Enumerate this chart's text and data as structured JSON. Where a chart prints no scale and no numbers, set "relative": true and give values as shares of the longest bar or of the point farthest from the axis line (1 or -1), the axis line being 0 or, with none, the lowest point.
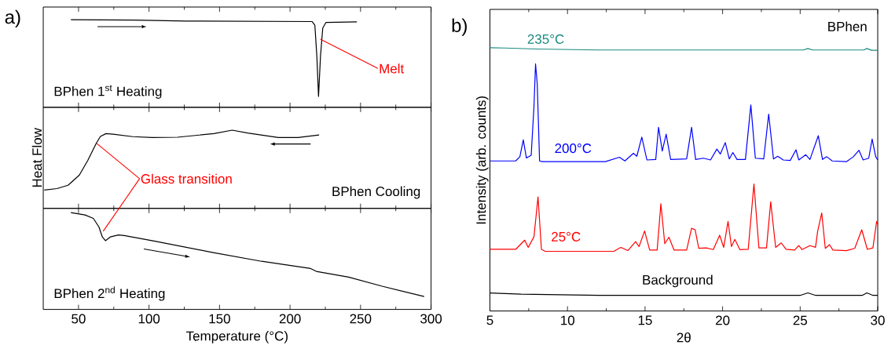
{
  "chart_data": [
    {
      "type": "line",
      "title": "a)",
      "relative": true,
      "xlim": [
        25,
        300
      ],
      "xticks": [
        50,
        100,
        150,
        200,
        250,
        300
      ],
      "tick_labels": false,
      "marker": "none",
      "annotations": [
        "BPhen 1$^{st}$ Heating",
        {
          "text": "Melt",
          "x": 221.5,
          "y": 0.745
        }
      ],
      "series": [
        {
          "color": "#000000",
          "x": [
            44.6,
            90.4,
            126,
            215.6,
            217.6,
            219,
            220.2,
            221.6,
            223.2,
            225.5,
            247.4
          ],
          "values": [
            1.0,
            0.993,
            0.982,
            0.975,
            0.927,
            0.527,
            0,
            0.527,
            0.891,
            0.964,
            0.971
          ]
        }
      ]
    },
    {
      "type": "line",
      "ylabel": "Heat Flow",
      "relative": true,
      "xlim": [
        25,
        300
      ],
      "xticks": [
        50,
        100,
        150,
        200,
        250,
        300
      ],
      "tick_labels": false,
      "marker": "none",
      "annotations": [
        "BPhen Cooling",
        {
          "text": "Glass transition",
          "x": 62.9,
          "y": 0.778
        }
      ],
      "series": [
        {
          "color": "#000000",
          "x": [
            25.7,
            34.7,
            42.6,
            50.6,
            56.6,
            62.5,
            65.5,
            69.5,
            74.5,
            88.4,
            102.3,
            120.2,
            146,
            159,
            169.9,
            191.7,
            205.7,
            220.6
          ],
          "values": [
            0,
            0.024,
            0.08,
            0.25,
            0.495,
            0.778,
            0.896,
            0.943,
            0.934,
            0.892,
            0.877,
            0.882,
            0.943,
            1.0,
            0.953,
            0.877,
            0.877,
            0.92
          ]
        }
      ]
    },
    {
      "type": "line",
      "xlabel": "Temperature (°C)",
      "relative": true,
      "xlim": [
        25,
        300
      ],
      "xticks": [
        50,
        100,
        150,
        200,
        250,
        300
      ],
      "tick_labels": "x",
      "marker": "none",
      "annotations": [
        "BPhen 2$^{nd}$ Heating"
      ],
      "series": [
        {
          "color": "#000000",
          "x": [
            44.6,
            54.6,
            60.5,
            64.5,
            66.9,
            69.1,
            72.5,
            78.4,
            82.4,
            104.3,
            144,
            179.8,
            214.6,
            218.6,
            241.5,
            265.3,
            295.1
          ],
          "values": [
            1.0,
            0.973,
            0.932,
            0.829,
            0.71,
            0.666,
            0.71,
            0.734,
            0.727,
            0.659,
            0.529,
            0.42,
            0.334,
            0.3,
            0.232,
            0.123,
            0
          ]
        }
      ]
    },
    {
      "type": "line",
      "title": "b)",
      "xlabel": "2θ",
      "ylabel": "Intensity (arb. counts)",
      "relative": true,
      "xlim": [
        5,
        30
      ],
      "xticks": [
        5,
        10,
        15,
        20,
        25,
        30
      ],
      "tick_labels": "x",
      "marker": "none",
      "annotations": [
        "BPhen"
      ],
      "series": [
        {
          "name": "235°C",
          "color": "#1a8a80",
          "x": [
            5,
            6,
            8,
            12,
            20,
            25.2,
            25.5,
            25.8,
            29.1,
            29.3,
            29.6,
            30
          ],
          "values": [
            1.0,
            0.999,
            0.995,
            0.991,
            0.991,
            0.991,
            0.997,
            0.991,
            0.991,
            0.997,
            0.99,
            0.99
          ]
        },
        {
          "name": "200°C",
          "color": "#0000ff",
          "x": [
            5,
            6.66,
            6.93,
            7.15,
            7.35,
            7.66,
            7.84,
            7.94,
            8.05,
            8.2,
            8.38,
            12.44,
            13.35,
            13.7,
            14.25,
            14.47,
            14.79,
            15.12,
            15.69,
            15.87,
            16.11,
            16.36,
            16.65,
            17.68,
            18.0,
            18.26,
            18.76,
            19.22,
            19.63,
            19.85,
            20.17,
            20.43,
            20.66,
            20.93,
            21.47,
            21.82,
            22.11,
            22.65,
            22.97,
            23.28,
            23.55,
            23.91,
            24.36,
            24.73,
            24.91,
            25.36,
            25.63,
            26.17,
            26.44,
            26.71,
            27.07,
            27.98,
            28.43,
            28.79,
            29.06,
            29.42,
            29.64,
            29.87,
            30
          ],
          "values": [
            0.543,
            0.543,
            0.56,
            0.628,
            0.555,
            0.566,
            0.764,
            0.935,
            0.854,
            0.543,
            0.54,
            0.54,
            0.558,
            0.543,
            0.574,
            0.562,
            0.639,
            0.547,
            0.549,
            0.679,
            0.583,
            0.651,
            0.549,
            0.551,
            0.679,
            0.549,
            0.554,
            0.547,
            0.591,
            0.571,
            0.617,
            0.551,
            0.577,
            0.549,
            0.549,
            0.769,
            0.554,
            0.551,
            0.732,
            0.551,
            0.562,
            0.547,
            0.545,
            0.588,
            0.547,
            0.568,
            0.549,
            0.645,
            0.549,
            0.56,
            0.543,
            0.54,
            0.56,
            0.586,
            0.547,
            0.554,
            0.631,
            0.56,
            0.547
          ]
        },
        {
          "name": "25°C",
          "color": "#ff0000",
          "x": [
            5,
            6.66,
            7.24,
            7.47,
            7.84,
            8.1,
            8.32,
            8.56,
            12.98,
            13.44,
            13.89,
            14.39,
            14.61,
            14.97,
            15.3,
            15.78,
            16.02,
            16.27,
            16.54,
            16.87,
            17.68,
            18.0,
            18.23,
            18.46,
            18.94,
            19.4,
            19.81,
            20.07,
            20.35,
            20.57,
            20.79,
            21.11,
            21.65,
            22.02,
            22.34,
            22.83,
            23.1,
            23.42,
            23.78,
            24.09,
            24.64,
            24.91,
            25.12,
            25.63,
            25.99,
            26.13,
            26.39,
            26.62,
            26.89,
            27.11,
            27.98,
            28.52,
            28.97,
            29.33,
            29.69,
            29.93,
            30
          ],
          "values": [
            0.186,
            0.186,
            0.223,
            0.194,
            0.237,
            0.398,
            0.186,
            0.178,
            0.178,
            0.194,
            0.181,
            0.217,
            0.197,
            0.26,
            0.183,
            0.183,
            0.37,
            0.209,
            0.235,
            0.183,
            0.183,
            0.271,
            0.265,
            0.19,
            0.192,
            0.185,
            0.243,
            0.194,
            0.299,
            0.197,
            0.226,
            0.185,
            0.186,
            0.45,
            0.192,
            0.192,
            0.378,
            0.194,
            0.212,
            0.186,
            0.183,
            0.201,
            0.185,
            0.201,
            0.194,
            0.26,
            0.333,
            0.19,
            0.205,
            0.183,
            0.181,
            0.19,
            0.265,
            0.186,
            0.192,
            0.299,
            0.288
          ]
        },
        {
          "name": "Background",
          "color": "#000000",
          "x": [
            5,
            7,
            12,
            20,
            25,
            25.5,
            26,
            29,
            29.3,
            29.7,
            30
          ],
          "values": [
            0.01,
            0.005,
            0,
            0,
            0,
            0.01,
            0,
            0,
            0.01,
            0,
            0
          ]
        }
      ]
    }
  ]
}
